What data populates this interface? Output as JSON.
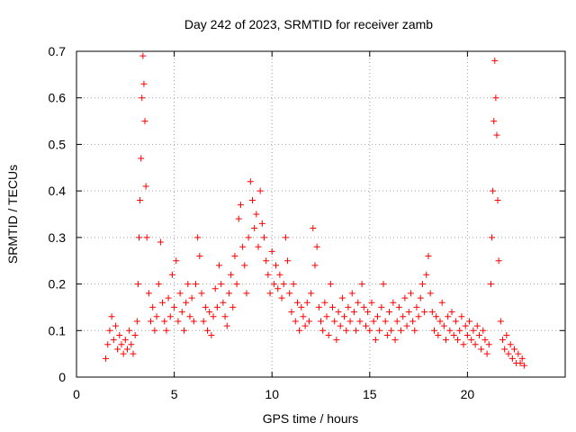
{
  "chart_data": {
    "type": "scatter",
    "title": "Day 242 of 2023, SRMTID for receiver zamb",
    "xlabel": "GPS time / hours",
    "ylabel": "SRMTID / TECUs",
    "xlim": [
      0,
      25
    ],
    "ylim": [
      0,
      0.7
    ],
    "x_ticks": [
      0,
      5,
      10,
      15,
      20
    ],
    "y_ticks": [
      0,
      0.1,
      0.2,
      0.3,
      0.4,
      0.5,
      0.6,
      0.7
    ],
    "x_tick_labels": [
      "0",
      "5",
      "10",
      "15",
      "20"
    ],
    "y_tick_labels": [
      "0",
      "0.1",
      "0.2",
      "0.3",
      "0.4",
      "0.5",
      "0.6",
      "0.7"
    ],
    "grid": true,
    "marker": "+",
    "color": "#ff0000",
    "series": [
      {
        "name": "SRMTID",
        "points": [
          [
            1.5,
            0.04
          ],
          [
            1.6,
            0.07
          ],
          [
            1.7,
            0.1
          ],
          [
            1.8,
            0.13
          ],
          [
            1.9,
            0.08
          ],
          [
            2.0,
            0.11
          ],
          [
            2.1,
            0.06
          ],
          [
            2.2,
            0.09
          ],
          [
            2.3,
            0.07
          ],
          [
            2.4,
            0.05
          ],
          [
            2.5,
            0.08
          ],
          [
            2.6,
            0.06
          ],
          [
            2.7,
            0.1
          ],
          [
            2.8,
            0.07
          ],
          [
            2.9,
            0.05
          ],
          [
            3.0,
            0.09
          ],
          [
            3.1,
            0.12
          ],
          [
            3.15,
            0.2
          ],
          [
            3.2,
            0.3
          ],
          [
            3.25,
            0.38
          ],
          [
            3.3,
            0.47
          ],
          [
            3.35,
            0.6
          ],
          [
            3.4,
            0.69
          ],
          [
            3.45,
            0.63
          ],
          [
            3.5,
            0.55
          ],
          [
            3.55,
            0.41
          ],
          [
            3.6,
            0.3
          ],
          [
            3.7,
            0.18
          ],
          [
            3.8,
            0.12
          ],
          [
            3.9,
            0.15
          ],
          [
            4.0,
            0.1
          ],
          [
            4.1,
            0.13
          ],
          [
            4.2,
            0.2
          ],
          [
            4.3,
            0.29
          ],
          [
            4.4,
            0.16
          ],
          [
            4.5,
            0.12
          ],
          [
            4.6,
            0.1
          ],
          [
            4.7,
            0.17
          ],
          [
            4.8,
            0.13
          ],
          [
            4.9,
            0.22
          ],
          [
            5.0,
            0.15
          ],
          [
            5.1,
            0.25
          ],
          [
            5.2,
            0.12
          ],
          [
            5.3,
            0.18
          ],
          [
            5.4,
            0.14
          ],
          [
            5.5,
            0.1
          ],
          [
            5.6,
            0.16
          ],
          [
            5.7,
            0.2
          ],
          [
            5.8,
            0.13
          ],
          [
            5.9,
            0.17
          ],
          [
            6.0,
            0.12
          ],
          [
            6.1,
            0.2
          ],
          [
            6.2,
            0.3
          ],
          [
            6.3,
            0.26
          ],
          [
            6.4,
            0.18
          ],
          [
            6.5,
            0.12
          ],
          [
            6.6,
            0.15
          ],
          [
            6.7,
            0.1
          ],
          [
            6.8,
            0.14
          ],
          [
            6.9,
            0.09
          ],
          [
            7.0,
            0.13
          ],
          [
            7.1,
            0.19
          ],
          [
            7.2,
            0.15
          ],
          [
            7.3,
            0.24
          ],
          [
            7.4,
            0.2
          ],
          [
            7.5,
            0.16
          ],
          [
            7.6,
            0.13
          ],
          [
            7.7,
            0.11
          ],
          [
            7.8,
            0.18
          ],
          [
            7.9,
            0.22
          ],
          [
            8.0,
            0.15
          ],
          [
            8.1,
            0.26
          ],
          [
            8.2,
            0.2
          ],
          [
            8.3,
            0.34
          ],
          [
            8.4,
            0.37
          ],
          [
            8.5,
            0.28
          ],
          [
            8.6,
            0.24
          ],
          [
            8.7,
            0.18
          ],
          [
            8.8,
            0.3
          ],
          [
            8.9,
            0.42
          ],
          [
            9.0,
            0.38
          ],
          [
            9.1,
            0.32
          ],
          [
            9.2,
            0.35
          ],
          [
            9.3,
            0.28
          ],
          [
            9.4,
            0.4
          ],
          [
            9.5,
            0.33
          ],
          [
            9.6,
            0.3
          ],
          [
            9.7,
            0.25
          ],
          [
            9.8,
            0.22
          ],
          [
            9.9,
            0.18
          ],
          [
            10.0,
            0.27
          ],
          [
            10.1,
            0.2
          ],
          [
            10.2,
            0.24
          ],
          [
            10.3,
            0.19
          ],
          [
            10.4,
            0.22
          ],
          [
            10.5,
            0.17
          ],
          [
            10.6,
            0.2
          ],
          [
            10.7,
            0.3
          ],
          [
            10.8,
            0.25
          ],
          [
            10.9,
            0.18
          ],
          [
            11.0,
            0.14
          ],
          [
            11.1,
            0.2
          ],
          [
            11.2,
            0.12
          ],
          [
            11.3,
            0.16
          ],
          [
            11.4,
            0.1
          ],
          [
            11.5,
            0.15
          ],
          [
            11.6,
            0.13
          ],
          [
            11.7,
            0.11
          ],
          [
            11.8,
            0.16
          ],
          [
            11.9,
            0.12
          ],
          [
            12.0,
            0.18
          ],
          [
            12.1,
            0.32
          ],
          [
            12.2,
            0.24
          ],
          [
            12.3,
            0.28
          ],
          [
            12.4,
            0.15
          ],
          [
            12.5,
            0.12
          ],
          [
            12.6,
            0.1
          ],
          [
            12.7,
            0.16
          ],
          [
            12.8,
            0.13
          ],
          [
            12.9,
            0.09
          ],
          [
            13.0,
            0.2
          ],
          [
            13.1,
            0.15
          ],
          [
            13.2,
            0.12
          ],
          [
            13.3,
            0.08
          ],
          [
            13.4,
            0.14
          ],
          [
            13.5,
            0.11
          ],
          [
            13.6,
            0.17
          ],
          [
            13.7,
            0.13
          ],
          [
            13.8,
            0.1
          ],
          [
            13.9,
            0.15
          ],
          [
            14.0,
            0.12
          ],
          [
            14.1,
            0.18
          ],
          [
            14.2,
            0.14
          ],
          [
            14.3,
            0.1
          ],
          [
            14.4,
            0.16
          ],
          [
            14.5,
            0.12
          ],
          [
            14.6,
            0.2
          ],
          [
            14.7,
            0.15
          ],
          [
            14.8,
            0.11
          ],
          [
            14.9,
            0.14
          ],
          [
            15.0,
            0.1
          ],
          [
            15.1,
            0.16
          ],
          [
            15.2,
            0.12
          ],
          [
            15.3,
            0.08
          ],
          [
            15.4,
            0.13
          ],
          [
            15.5,
            0.1
          ],
          [
            15.6,
            0.15
          ],
          [
            15.7,
            0.2
          ],
          [
            15.8,
            0.12
          ],
          [
            15.9,
            0.09
          ],
          [
            16.0,
            0.14
          ],
          [
            16.1,
            0.1
          ],
          [
            16.2,
            0.16
          ],
          [
            16.3,
            0.08
          ],
          [
            16.4,
            0.12
          ],
          [
            16.5,
            0.15
          ],
          [
            16.6,
            0.1
          ],
          [
            16.7,
            0.13
          ],
          [
            16.8,
            0.17
          ],
          [
            16.9,
            0.11
          ],
          [
            17.0,
            0.14
          ],
          [
            17.1,
            0.18
          ],
          [
            17.2,
            0.12
          ],
          [
            17.3,
            0.1
          ],
          [
            17.4,
            0.15
          ],
          [
            17.5,
            0.13
          ],
          [
            17.6,
            0.17
          ],
          [
            17.7,
            0.2
          ],
          [
            17.8,
            0.14
          ],
          [
            17.9,
            0.22
          ],
          [
            18.0,
            0.26
          ],
          [
            18.1,
            0.18
          ],
          [
            18.2,
            0.14
          ],
          [
            18.3,
            0.1
          ],
          [
            18.4,
            0.13
          ],
          [
            18.5,
            0.09
          ],
          [
            18.6,
            0.12
          ],
          [
            18.7,
            0.16
          ],
          [
            18.8,
            0.11
          ],
          [
            18.9,
            0.08
          ],
          [
            19.0,
            0.13
          ],
          [
            19.1,
            0.1
          ],
          [
            19.2,
            0.14
          ],
          [
            19.3,
            0.09
          ],
          [
            19.4,
            0.12
          ],
          [
            19.5,
            0.08
          ],
          [
            19.6,
            0.1
          ],
          [
            19.7,
            0.13
          ],
          [
            19.8,
            0.07
          ],
          [
            19.9,
            0.11
          ],
          [
            20.0,
            0.09
          ],
          [
            20.1,
            0.12
          ],
          [
            20.2,
            0.08
          ],
          [
            20.3,
            0.1
          ],
          [
            20.4,
            0.07
          ],
          [
            20.5,
            0.11
          ],
          [
            20.6,
            0.09
          ],
          [
            20.7,
            0.06
          ],
          [
            20.8,
            0.1
          ],
          [
            20.9,
            0.08
          ],
          [
            21.0,
            0.05
          ],
          [
            21.1,
            0.07
          ],
          [
            21.2,
            0.2
          ],
          [
            21.25,
            0.3
          ],
          [
            21.3,
            0.4
          ],
          [
            21.35,
            0.55
          ],
          [
            21.4,
            0.68
          ],
          [
            21.45,
            0.6
          ],
          [
            21.5,
            0.52
          ],
          [
            21.55,
            0.38
          ],
          [
            21.6,
            0.25
          ],
          [
            21.7,
            0.12
          ],
          [
            21.8,
            0.08
          ],
          [
            21.9,
            0.06
          ],
          [
            22.0,
            0.09
          ],
          [
            22.1,
            0.05
          ],
          [
            22.2,
            0.07
          ],
          [
            22.3,
            0.04
          ],
          [
            22.4,
            0.06
          ],
          [
            22.5,
            0.03
          ],
          [
            22.6,
            0.05
          ],
          [
            22.7,
            0.03
          ],
          [
            22.8,
            0.04
          ],
          [
            22.9,
            0.025
          ]
        ]
      }
    ]
  }
}
